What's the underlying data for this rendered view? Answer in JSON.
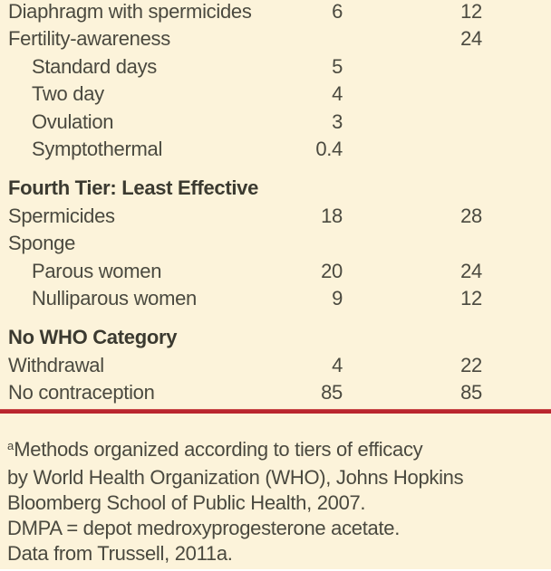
{
  "colors": {
    "background": "#fcf3da",
    "text": "#4a493f",
    "header_text": "#3b3a30",
    "rule": "#b9252e"
  },
  "table": {
    "rows": [
      {
        "label": "Diaphragm with spermicides",
        "indent": false,
        "col1": "6",
        "col2": "12"
      },
      {
        "label": "Fertility-awareness",
        "indent": false,
        "col1": "",
        "col2": "24"
      },
      {
        "label": "Standard days",
        "indent": true,
        "col1": "5",
        "col2": ""
      },
      {
        "label": "Two day",
        "indent": true,
        "col1": "4",
        "col2": ""
      },
      {
        "label": "Ovulation",
        "indent": true,
        "col1": "3",
        "col2": ""
      },
      {
        "label": "Symptothermal",
        "indent": true,
        "col1": "0.4",
        "col2": ""
      },
      {
        "label": "Fourth Tier: Least Effective",
        "header": true
      },
      {
        "label": "Spermicides",
        "indent": false,
        "col1": "18",
        "col2": "28"
      },
      {
        "label": "Sponge",
        "indent": false,
        "col1": "",
        "col2": ""
      },
      {
        "label": "Parous women",
        "indent": true,
        "col1": "20",
        "col2": "24"
      },
      {
        "label": "Nulliparous women",
        "indent": true,
        "col1": "9",
        "col2": "12"
      },
      {
        "label": "No WHO Category",
        "header": true
      },
      {
        "label": "Withdrawal",
        "indent": false,
        "col1": "4",
        "col2": "22"
      },
      {
        "label": "No contraception",
        "indent": false,
        "col1": "85",
        "col2": "85"
      }
    ]
  },
  "footnote": {
    "superscript": "a",
    "lines": [
      "Methods organized according to tiers of efficacy",
      "by World Health Organization (WHO), Johns Hopkins",
      "Bloomberg School of Public Health, 2007.",
      "DMPA = depot medroxyprogesterone acetate.",
      "Data from Trussell, 2011a."
    ]
  }
}
